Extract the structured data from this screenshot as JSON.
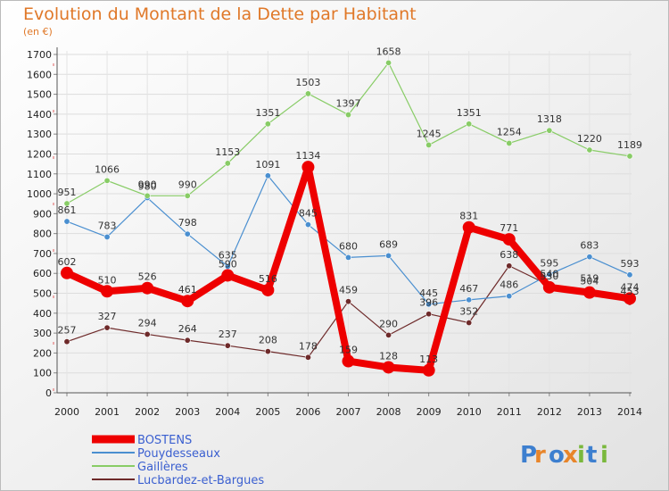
{
  "chart_data": {
    "type": "line",
    "title": "Evolution du Montant de la Dette par Habitant",
    "subtitle": "(en €)",
    "xlabel": "",
    "ylabel": "",
    "x": [
      "2000",
      "2001",
      "2002",
      "2003",
      "2004",
      "2005",
      "2006",
      "2007",
      "2008",
      "2009",
      "2010",
      "2011",
      "2012",
      "2013",
      "2014"
    ],
    "ylim": [
      0,
      1700
    ],
    "yticks": [
      "0",
      "100",
      "200",
      "300",
      "400",
      "500",
      "600",
      "700",
      "800",
      "900",
      "1000",
      "1100",
      "1200",
      "1300",
      "1400",
      "1500",
      "1600",
      "1700"
    ],
    "grid": true,
    "legend_position": "bottom-left",
    "series": [
      {
        "name": "BOSTENS",
        "color": "#ee0000",
        "values": [
          602,
          510,
          526,
          461,
          590,
          516,
          1134,
          159,
          128,
          113,
          831,
          771,
          530,
          504,
          474
        ],
        "labels": [
          "602",
          "510",
          "526",
          "461",
          "590",
          "516",
          "1134",
          "159",
          "128",
          "113",
          "831",
          "771",
          "530",
          "504",
          "474"
        ]
      },
      {
        "name": "Pouydesseaux",
        "color": "#4a8fd0",
        "values": [
          861,
          783,
          980,
          798,
          635,
          1091,
          845,
          680,
          689,
          445,
          467,
          486,
          595,
          683,
          593
        ],
        "labels": [
          "861",
          "783",
          "980",
          "798",
          "635",
          "1091",
          "845",
          "680",
          "689",
          "445",
          "467",
          "486",
          "595",
          "683",
          "593"
        ]
      },
      {
        "name": "Gaillères",
        "color": "#88cc66",
        "values": [
          951,
          1066,
          990,
          990,
          1153,
          1351,
          1503,
          1397,
          1658,
          1245,
          1351,
          1254,
          1318,
          1220,
          1189
        ],
        "labels": [
          "951",
          "1066",
          "990",
          "990",
          "1153",
          "1351",
          "1503",
          "1397",
          "1658",
          "1245",
          "1351",
          "1254",
          "1318",
          "1220",
          "1189"
        ]
      },
      {
        "name": "Lucbardez-et-Bargues",
        "color": "#6e2a2a",
        "values": [
          257,
          327,
          294,
          264,
          237,
          208,
          178,
          459,
          290,
          396,
          352,
          638,
          540,
          519,
          453
        ],
        "labels": [
          "257",
          "327",
          "294",
          "264",
          "237",
          "208",
          "178",
          "459",
          "290",
          "396",
          "352",
          "638",
          "540",
          "519",
          "453"
        ]
      }
    ]
  },
  "brand": {
    "logo_text": "Proxiti"
  }
}
